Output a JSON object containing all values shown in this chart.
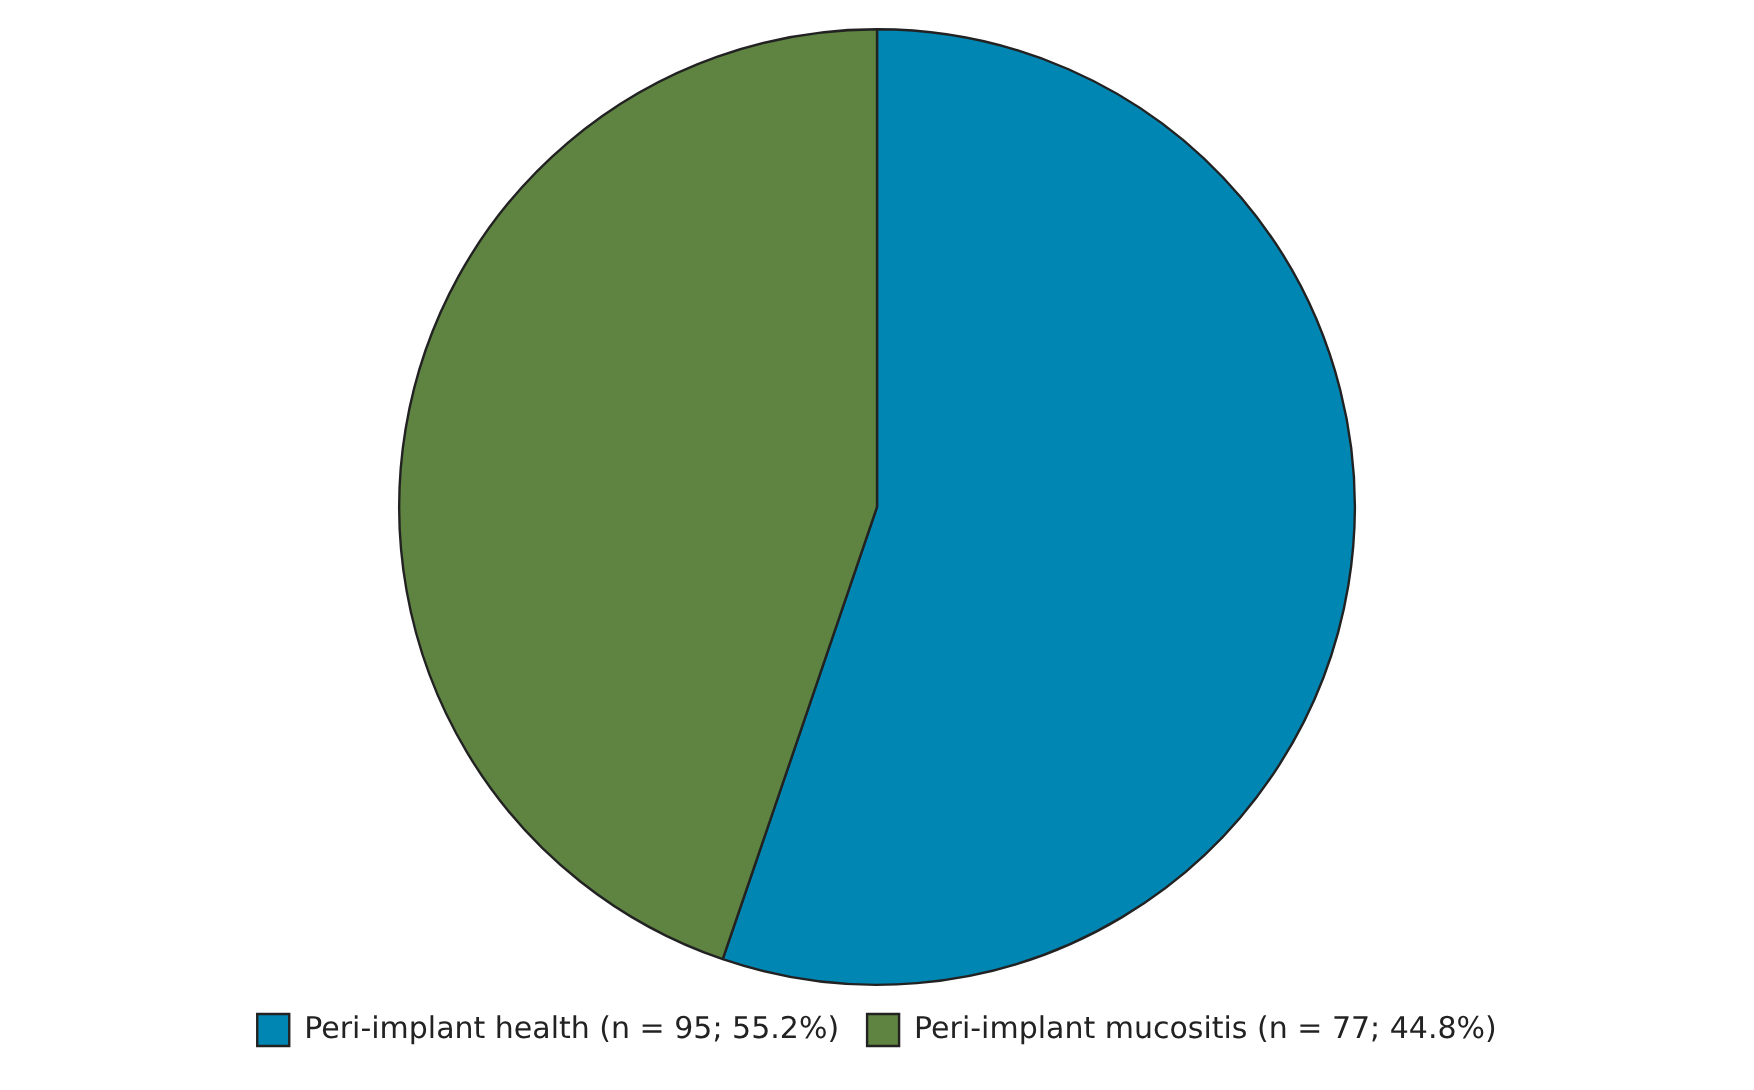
{
  "chart_data": {
    "type": "pie",
    "categories": [
      "Peri-implant health (n = 95; 55.2%)",
      "Peri-implant mucositis (n = 77; 44.8%)"
    ],
    "values": [
      95,
      77
    ],
    "colors": [
      "#0086b3",
      "#5f8441"
    ],
    "legend": "bottom"
  }
}
